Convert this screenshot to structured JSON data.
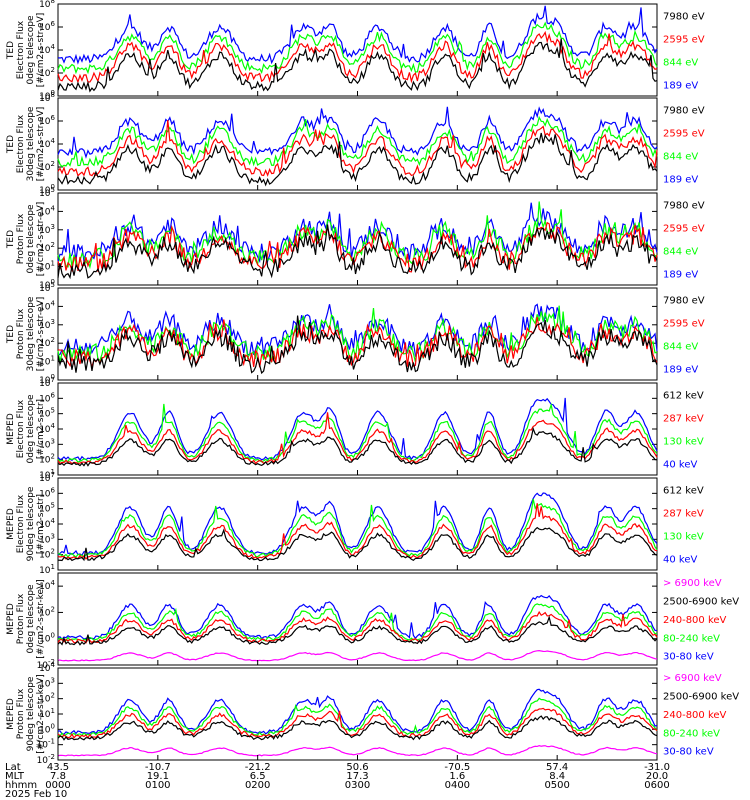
{
  "title": "",
  "date_label": "2025 Feb 10",
  "axis_row_labels": [
    "Lat",
    "MLT",
    "hhmm"
  ],
  "x_ticks": [
    {
      "lat": "43.5",
      "mlt": "7.8",
      "hhmm": "0000"
    },
    {
      "lat": "-10.7",
      "mlt": "19.1",
      "hhmm": "0100"
    },
    {
      "lat": "-21.2",
      "mlt": "6.5",
      "hhmm": "0200"
    },
    {
      "lat": "50.6",
      "mlt": "17.3",
      "hhmm": "0300"
    },
    {
      "lat": "-70.5",
      "mlt": "1.6",
      "hhmm": "0400"
    },
    {
      "lat": "57.4",
      "mlt": "8.4",
      "hhmm": "0500"
    },
    {
      "lat": "-31.0",
      "mlt": "20.0",
      "hhmm": "0600"
    }
  ],
  "colors": {
    "blue": "#0000ff",
    "red": "#ff0000",
    "green": "#00ff00",
    "black": "#000000",
    "magenta": "#ff00ff"
  },
  "chart_data": [
    {
      "type": "line",
      "ylabel": [
        "TED",
        "Electron Flux",
        "0deg telescope",
        "[#/cm2-s-str-eV]"
      ],
      "ylim_exp": [
        0,
        8
      ],
      "tick_exps": [
        0,
        2,
        4,
        6,
        8
      ],
      "series": [
        {
          "name": "7980 eV",
          "color": "#000000"
        },
        {
          "name": "2595 eV",
          "color": "#ff0000"
        },
        {
          "name": "844 eV",
          "color": "#00ff00"
        },
        {
          "name": "189 eV",
          "color": "#0000ff"
        }
      ]
    },
    {
      "type": "line",
      "ylabel": [
        "TED",
        "Electron Flux",
        "30deg telescope",
        "[#/cm2-s-str-eV]"
      ],
      "ylim_exp": [
        0,
        8
      ],
      "tick_exps": [
        0,
        2,
        4,
        6,
        8
      ],
      "series": [
        {
          "name": "7980 eV",
          "color": "#000000"
        },
        {
          "name": "2595 eV",
          "color": "#ff0000"
        },
        {
          "name": "844 eV",
          "color": "#00ff00"
        },
        {
          "name": "189 eV",
          "color": "#0000ff"
        }
      ]
    },
    {
      "type": "line",
      "ylabel": [
        "TED",
        "Proton Flux",
        "0deg telescope",
        "[#/cm2-s-str-eV]"
      ],
      "ylim_exp": [
        0,
        5
      ],
      "tick_exps": [
        0,
        1,
        2,
        3,
        4,
        5
      ],
      "series": [
        {
          "name": "7980 eV",
          "color": "#000000"
        },
        {
          "name": "2595 eV",
          "color": "#ff0000"
        },
        {
          "name": "844 eV",
          "color": "#00ff00"
        },
        {
          "name": "189 eV",
          "color": "#0000ff"
        }
      ]
    },
    {
      "type": "line",
      "ylabel": [
        "TED",
        "Proton Flux",
        "30deg telescope",
        "[#/cm2-s-str-eV]"
      ],
      "ylim_exp": [
        0,
        5
      ],
      "tick_exps": [
        0,
        1,
        2,
        3,
        4,
        5
      ],
      "series": [
        {
          "name": "7980 eV",
          "color": "#000000"
        },
        {
          "name": "2595 eV",
          "color": "#ff0000"
        },
        {
          "name": "844 eV",
          "color": "#00ff00"
        },
        {
          "name": "189 eV",
          "color": "#0000ff"
        }
      ]
    },
    {
      "type": "line",
      "ylabel": [
        "MEPED",
        "Electron Flux",
        "0deg telescope",
        "[#/cm2-s-str]"
      ],
      "ylim_exp": [
        1,
        7
      ],
      "tick_exps": [
        1,
        2,
        3,
        4,
        5,
        6,
        7
      ],
      "series": [
        {
          "name": "612 keV",
          "color": "#000000"
        },
        {
          "name": "287 keV",
          "color": "#ff0000"
        },
        {
          "name": "130 keV",
          "color": "#00ff00"
        },
        {
          "name": "40 keV",
          "color": "#0000ff"
        }
      ]
    },
    {
      "type": "line",
      "ylabel": [
        "MEPED",
        "Electron Flux",
        "90deg telescope",
        "[#/cm2-s-str]"
      ],
      "ylim_exp": [
        1,
        7
      ],
      "tick_exps": [
        1,
        2,
        3,
        4,
        5,
        6,
        7
      ],
      "series": [
        {
          "name": "612 keV",
          "color": "#000000"
        },
        {
          "name": "287 keV",
          "color": "#ff0000"
        },
        {
          "name": "130 keV",
          "color": "#00ff00"
        },
        {
          "name": "40 keV",
          "color": "#0000ff"
        }
      ]
    },
    {
      "type": "line",
      "ylabel": [
        "MEPED",
        "Proton Flux",
        "0deg telescope",
        "[#/cm2-s-str-keV]"
      ],
      "ylim_exp": [
        -2,
        5
      ],
      "tick_exps": [
        -2,
        0,
        2,
        4
      ],
      "series": [
        {
          "name": "> 6900 keV",
          "color": "#ff00ff"
        },
        {
          "name": "2500-6900 keV",
          "color": "#000000"
        },
        {
          "name": "240-800 keV",
          "color": "#ff0000"
        },
        {
          "name": "80-240 keV",
          "color": "#00ff00"
        },
        {
          "name": "30-80 keV",
          "color": "#0000ff"
        }
      ]
    },
    {
      "type": "line",
      "ylabel": [
        "MEPED",
        "Proton Flux",
        "90deg telescope",
        "[#/cm2-s-str-keV]"
      ],
      "ylim_exp": [
        -2,
        4
      ],
      "tick_exps": [
        -2,
        -1,
        0,
        1,
        2,
        3,
        4
      ],
      "series": [
        {
          "name": "> 6900 keV",
          "color": "#ff00ff"
        },
        {
          "name": "2500-6900 keV",
          "color": "#000000"
        },
        {
          "name": "240-800 keV",
          "color": "#ff0000"
        },
        {
          "name": "80-240 keV",
          "color": "#00ff00"
        },
        {
          "name": "30-80 keV",
          "color": "#0000ff"
        }
      ]
    }
  ]
}
